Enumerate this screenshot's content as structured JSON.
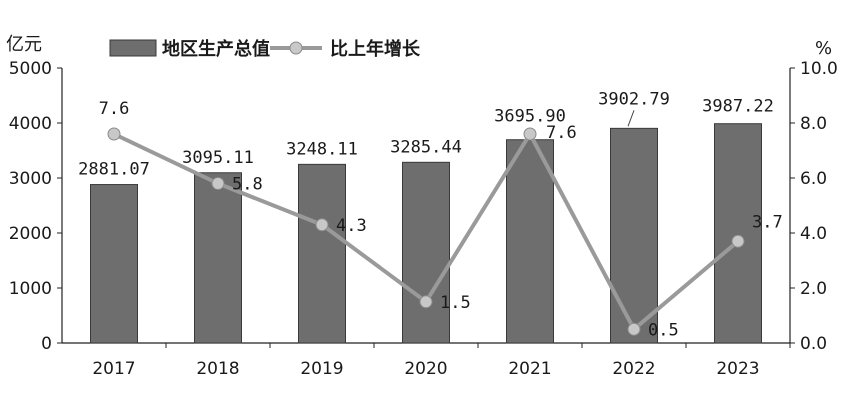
{
  "chart_data": {
    "type": "bar+line",
    "categories": [
      "2017",
      "2018",
      "2019",
      "2020",
      "2021",
      "2022",
      "2023"
    ],
    "series": [
      {
        "name": "地区生产总值",
        "type": "bar",
        "axis": "left",
        "values": [
          2881.07,
          3095.11,
          3248.11,
          3285.44,
          3695.9,
          3902.79,
          3987.22
        ],
        "labels": [
          "2881.07",
          "3095.11",
          "3248.11",
          "3285.44",
          "3695.90",
          "3902.79",
          "3987.22"
        ]
      },
      {
        "name": "比上年增长",
        "type": "line",
        "axis": "right",
        "values": [
          7.6,
          5.8,
          4.3,
          1.5,
          7.6,
          0.5,
          3.7
        ],
        "labels": [
          "7.6",
          "5.8",
          "4.3",
          "1.5",
          "7.6",
          "0.5",
          "3.7"
        ]
      }
    ],
    "y_left": {
      "unit": "亿元",
      "ylim": [
        0,
        5000
      ],
      "ticks": [
        "0",
        "1000",
        "2000",
        "3000",
        "4000",
        "5000"
      ]
    },
    "y_right": {
      "unit": "%",
      "ylim": [
        0,
        10
      ],
      "ticks": [
        "0.0",
        "2.0",
        "4.0",
        "6.0",
        "8.0",
        "10.0"
      ]
    },
    "legend_position": "top",
    "grid": false,
    "colors": {
      "bar_fill": "#6e6e6e",
      "bar_stroke": "#3a3a3a",
      "line": "#9a9a9a",
      "marker": "#c8c8c8",
      "axis": "#222222"
    }
  }
}
